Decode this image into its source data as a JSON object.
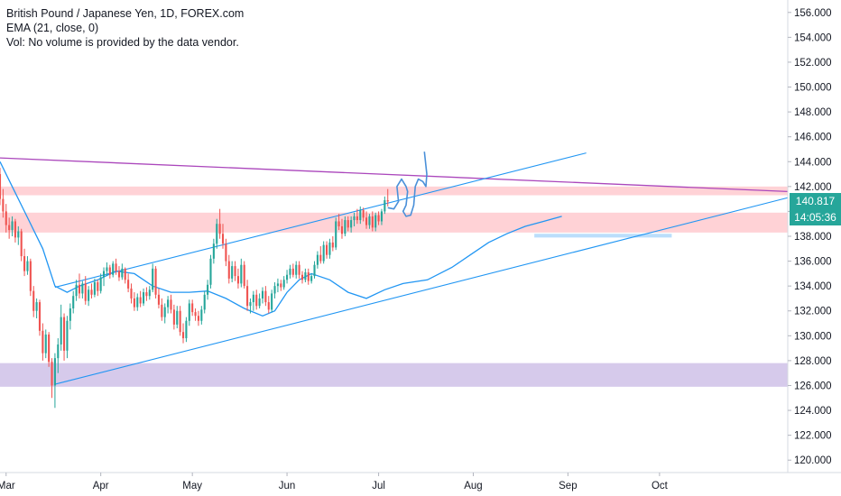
{
  "legend": {
    "title": "British Pound / Japanese Yen, 1D, FOREX.com",
    "ema": "EMA (21, close, 0)",
    "vol": "Vol: No volume is provided by the data vendor."
  },
  "tags": {
    "price": "140.817",
    "countdown": "14:05:36",
    "price_color": "#26a69a",
    "countdown_color": "#26a69a"
  },
  "colors": {
    "up": "#26a69a",
    "down": "#ef5350",
    "ema": "#2196f3",
    "channel": "#2196f3",
    "resistance_line": "#ab47bc",
    "zone_red": "#ffcdd2",
    "zone_purple": "#d1c4e9",
    "sketch": "#4a90d9"
  },
  "chart_data": {
    "type": "candlestick",
    "symbol": "British Pound / Japanese Yen, 1D, FOREX.com",
    "ylim": [
      119,
      157
    ],
    "y_ticks": [
      "120.000",
      "122.000",
      "124.000",
      "126.000",
      "128.000",
      "130.000",
      "132.000",
      "134.000",
      "136.000",
      "138.000",
      "140.000",
      "142.000",
      "144.000",
      "146.000",
      "148.000",
      "150.000",
      "152.000",
      "154.000",
      "156.000"
    ],
    "x_ticks": [
      "Mar",
      "Apr",
      "May",
      "Jun",
      "Jul",
      "Aug",
      "Sep",
      "Oct"
    ],
    "x_tick_days": [
      0,
      31,
      61,
      92,
      122,
      153,
      184,
      214
    ],
    "x_range_days": [
      -2,
      256
    ],
    "last_price": 140.817,
    "ema_path": [
      [
        -2,
        144
      ],
      [
        2,
        142
      ],
      [
        6,
        140
      ],
      [
        12,
        137
      ],
      [
        16,
        134
      ],
      [
        20,
        133.5
      ],
      [
        24,
        134
      ],
      [
        30,
        134.5
      ],
      [
        36,
        135.2
      ],
      [
        42,
        135
      ],
      [
        48,
        134
      ],
      [
        54,
        133.5
      ],
      [
        60,
        133.5
      ],
      [
        66,
        133.6
      ],
      [
        72,
        133
      ],
      [
        78,
        132.2
      ],
      [
        84,
        131.6
      ],
      [
        88,
        132
      ],
      [
        92,
        133.5
      ],
      [
        96,
        134.5
      ],
      [
        100,
        135
      ],
      [
        106,
        134.5
      ],
      [
        112,
        133.5
      ],
      [
        118,
        133
      ],
      [
        124,
        133.7
      ],
      [
        130,
        134.2
      ],
      [
        138,
        134.5
      ],
      [
        146,
        135.5
      ],
      [
        152,
        136.5
      ],
      [
        158,
        137.5
      ],
      [
        164,
        138.2
      ],
      [
        170,
        138.8
      ],
      [
        176,
        139.2
      ],
      [
        182,
        139.6
      ]
    ],
    "candles": [
      [
        -2,
        143.0,
        143.5,
        140.5,
        141.0
      ],
      [
        -1,
        141.0,
        141.8,
        139.5,
        140.0
      ],
      [
        0,
        140.0,
        140.6,
        138.3,
        138.9
      ],
      [
        1,
        138.9,
        139.5,
        137.8,
        138.5
      ],
      [
        2,
        138.5,
        139.6,
        138.0,
        139.2
      ],
      [
        3,
        139.2,
        139.4,
        137.5,
        137.9
      ],
      [
        4,
        137.9,
        138.8,
        137.3,
        138.4
      ],
      [
        5,
        138.4,
        138.6,
        136.0,
        136.4
      ],
      [
        6,
        136.4,
        137.0,
        134.8,
        135.2
      ],
      [
        7,
        135.2,
        136.4,
        134.9,
        136.0
      ],
      [
        8,
        136.0,
        136.2,
        133.2,
        133.6
      ],
      [
        9,
        133.6,
        134.0,
        131.5,
        132.0
      ],
      [
        10,
        132.0,
        133.0,
        131.4,
        132.7
      ],
      [
        11,
        132.7,
        132.9,
        130.0,
        130.4
      ],
      [
        12,
        130.4,
        131.0,
        128.0,
        128.6
      ],
      [
        13,
        128.6,
        130.5,
        128.2,
        130.1
      ],
      [
        14,
        130.1,
        130.3,
        127.5,
        127.9
      ],
      [
        15,
        127.9,
        128.2,
        125.0,
        126.0
      ],
      [
        16,
        126.0,
        128.6,
        124.2,
        128.2
      ],
      [
        17,
        128.2,
        129.8,
        127.0,
        129.3
      ],
      [
        18,
        129.3,
        132.5,
        128.8,
        131.5
      ],
      [
        19,
        131.5,
        131.8,
        128.0,
        128.8
      ],
      [
        20,
        128.8,
        131.6,
        128.2,
        131.2
      ],
      [
        21,
        131.2,
        132.6,
        130.5,
        132.2
      ],
      [
        22,
        132.2,
        133.6,
        131.8,
        133.2
      ],
      [
        23,
        133.2,
        134.5,
        132.8,
        134.1
      ],
      [
        24,
        134.1,
        135.0,
        133.0,
        133.4
      ],
      [
        25,
        133.4,
        134.4,
        133.0,
        134.2
      ],
      [
        26,
        134.2,
        134.8,
        132.5,
        132.8
      ],
      [
        27,
        132.8,
        134.0,
        132.4,
        133.7
      ],
      [
        28,
        133.7,
        134.2,
        133.0,
        133.3
      ],
      [
        29,
        133.3,
        134.6,
        133.1,
        134.3
      ],
      [
        30,
        134.3,
        134.5,
        133.2,
        133.6
      ],
      [
        31,
        133.6,
        135.0,
        133.4,
        134.7
      ],
      [
        32,
        134.7,
        135.5,
        134.0,
        135.2
      ],
      [
        33,
        135.2,
        135.9,
        134.8,
        135.5
      ],
      [
        34,
        135.5,
        135.7,
        134.6,
        134.9
      ],
      [
        35,
        134.9,
        136.0,
        134.7,
        135.8
      ],
      [
        36,
        135.8,
        136.2,
        134.9,
        135.2
      ],
      [
        37,
        135.2,
        135.6,
        134.4,
        134.7
      ],
      [
        38,
        134.7,
        135.8,
        134.5,
        135.4
      ],
      [
        39,
        135.4,
        135.5,
        134.2,
        134.5
      ],
      [
        40,
        134.5,
        135.0,
        133.5,
        133.8
      ],
      [
        41,
        133.8,
        134.2,
        132.6,
        133.0
      ],
      [
        42,
        133.0,
        133.5,
        132.0,
        132.3
      ],
      [
        43,
        132.3,
        133.4,
        132.0,
        133.1
      ],
      [
        44,
        133.1,
        133.6,
        132.3,
        132.6
      ],
      [
        45,
        132.6,
        133.8,
        132.4,
        133.5
      ],
      [
        46,
        133.5,
        133.9,
        132.8,
        133.2
      ],
      [
        47,
        133.2,
        134.0,
        132.9,
        133.7
      ],
      [
        48,
        133.7,
        135.8,
        133.5,
        135.4
      ],
      [
        49,
        135.4,
        135.6,
        133.0,
        133.3
      ],
      [
        50,
        133.3,
        133.8,
        132.2,
        132.5
      ],
      [
        51,
        132.5,
        133.0,
        131.2,
        131.5
      ],
      [
        52,
        131.5,
        132.6,
        131.0,
        132.3
      ],
      [
        53,
        132.3,
        133.2,
        131.8,
        132.9
      ],
      [
        54,
        132.9,
        133.3,
        131.8,
        132.1
      ],
      [
        55,
        132.1,
        132.5,
        130.5,
        130.9
      ],
      [
        56,
        130.9,
        132.4,
        130.6,
        132.0
      ],
      [
        57,
        132.0,
        132.4,
        130.0,
        130.3
      ],
      [
        58,
        130.3,
        131.0,
        129.4,
        129.8
      ],
      [
        59,
        129.8,
        131.5,
        129.5,
        131.2
      ],
      [
        60,
        131.2,
        132.9,
        130.8,
        132.6
      ],
      [
        61,
        132.6,
        132.9,
        131.6,
        131.9
      ],
      [
        62,
        131.9,
        132.2,
        131.2,
        131.6
      ],
      [
        63,
        131.6,
        132.0,
        130.8,
        131.2
      ],
      [
        64,
        131.2,
        132.4,
        130.9,
        132.1
      ],
      [
        65,
        132.1,
        133.6,
        131.8,
        133.3
      ],
      [
        66,
        133.3,
        134.5,
        132.9,
        134.1
      ],
      [
        67,
        134.1,
        136.5,
        133.8,
        136.2
      ],
      [
        68,
        136.2,
        137.8,
        135.8,
        137.4
      ],
      [
        69,
        137.4,
        139.4,
        137.0,
        139.0
      ],
      [
        70,
        139.0,
        140.2,
        137.8,
        138.2
      ],
      [
        71,
        138.2,
        139.0,
        137.0,
        137.4
      ],
      [
        72,
        137.4,
        137.8,
        135.6,
        136.0
      ],
      [
        73,
        136.0,
        136.5,
        134.2,
        134.6
      ],
      [
        74,
        134.6,
        136.0,
        134.3,
        135.6
      ],
      [
        75,
        135.6,
        136.0,
        134.4,
        134.8
      ],
      [
        76,
        134.8,
        135.4,
        133.8,
        134.2
      ],
      [
        77,
        134.2,
        136.2,
        133.9,
        135.7
      ],
      [
        78,
        135.7,
        136.0,
        133.8,
        134.0
      ],
      [
        79,
        134.0,
        134.5,
        132.0,
        132.4
      ],
      [
        80,
        132.4,
        133.0,
        131.8,
        132.7
      ],
      [
        81,
        132.7,
        133.6,
        132.0,
        133.3
      ],
      [
        82,
        133.3,
        133.7,
        132.1,
        132.4
      ],
      [
        83,
        132.4,
        133.4,
        132.2,
        133.0
      ],
      [
        84,
        133.0,
        133.9,
        132.6,
        133.6
      ],
      [
        85,
        133.6,
        134.0,
        132.4,
        132.7
      ],
      [
        86,
        132.7,
        133.2,
        131.8,
        132.1
      ],
      [
        87,
        132.1,
        133.7,
        131.9,
        133.4
      ],
      [
        88,
        133.4,
        134.3,
        133.0,
        134.0
      ],
      [
        89,
        134.0,
        134.6,
        133.5,
        134.2
      ],
      [
        90,
        134.2,
        134.5,
        133.6,
        133.9
      ],
      [
        91,
        133.9,
        134.8,
        133.7,
        134.5
      ],
      [
        92,
        134.5,
        135.3,
        134.2,
        134.9
      ],
      [
        93,
        134.9,
        135.7,
        134.6,
        135.4
      ],
      [
        94,
        135.4,
        135.8,
        134.7,
        134.9
      ],
      [
        95,
        134.9,
        136.0,
        134.6,
        135.7
      ],
      [
        96,
        135.7,
        136.0,
        134.6,
        134.9
      ],
      [
        97,
        134.9,
        135.2,
        134.2,
        134.5
      ],
      [
        98,
        134.5,
        135.4,
        134.3,
        135.1
      ],
      [
        99,
        135.1,
        135.4,
        134.1,
        134.4
      ],
      [
        100,
        134.4,
        135.0,
        134.2,
        134.8
      ],
      [
        101,
        134.8,
        136.0,
        134.6,
        135.7
      ],
      [
        102,
        135.7,
        136.8,
        135.4,
        136.5
      ],
      [
        103,
        136.5,
        137.2,
        135.8,
        136.0
      ],
      [
        104,
        136.0,
        137.6,
        135.8,
        137.3
      ],
      [
        105,
        137.3,
        137.6,
        136.2,
        136.5
      ],
      [
        106,
        136.5,
        137.8,
        136.2,
        137.5
      ],
      [
        107,
        137.5,
        138.0,
        136.8,
        137.1
      ],
      [
        108,
        137.1,
        139.5,
        136.9,
        139.2
      ],
      [
        109,
        139.2,
        139.8,
        138.5,
        138.8
      ],
      [
        110,
        138.8,
        139.4,
        137.8,
        138.2
      ],
      [
        111,
        138.2,
        139.6,
        138.0,
        139.3
      ],
      [
        112,
        139.3,
        139.6,
        138.4,
        138.7
      ],
      [
        113,
        138.7,
        139.6,
        138.3,
        139.3
      ],
      [
        114,
        139.3,
        139.9,
        138.8,
        139.6
      ],
      [
        115,
        139.6,
        140.2,
        139.0,
        139.3
      ],
      [
        116,
        139.3,
        140.4,
        139.0,
        140.1
      ],
      [
        117,
        140.1,
        140.3,
        139.2,
        139.5
      ],
      [
        118,
        139.5,
        140.0,
        138.6,
        138.9
      ],
      [
        119,
        138.9,
        139.8,
        138.6,
        139.6
      ],
      [
        120,
        139.6,
        140.0,
        138.4,
        138.7
      ],
      [
        121,
        138.7,
        139.9,
        138.4,
        139.7
      ],
      [
        122,
        139.7,
        140.0,
        138.9,
        139.2
      ],
      [
        123,
        139.2,
        140.2,
        138.9,
        140.0
      ],
      [
        124,
        140.0,
        141.2,
        139.8,
        140.9
      ],
      [
        125,
        140.9,
        141.8,
        140.4,
        140.8
      ]
    ]
  },
  "drawings": {
    "resistance_line": [
      [
        -2,
        144.3
      ],
      [
        256,
        141.6
      ]
    ],
    "channel_upper": [
      [
        16,
        133.9
      ],
      [
        190,
        144.7
      ]
    ],
    "channel_lower": [
      [
        16,
        126.1
      ],
      [
        256,
        141.1
      ]
    ],
    "zone_red_upper": [
      141.3,
      142.0
    ],
    "zone_red_lower": [
      138.3,
      139.9
    ],
    "zone_purple": [
      125.9,
      127.8
    ],
    "blue_band": {
      "from_day": 173,
      "to_day": 218,
      "y": [
        137.9,
        138.2
      ]
    }
  }
}
